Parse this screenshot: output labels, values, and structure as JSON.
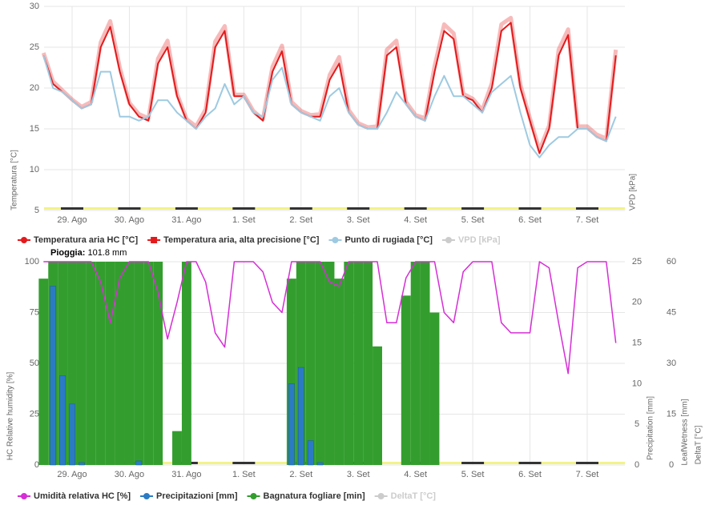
{
  "chart_data": [
    {
      "type": "line",
      "ylabel": "Temperatura [°C]",
      "y2label": "VPD [kPa]",
      "categories": [
        null,
        null,
        null,
        "29. Ago",
        null,
        null,
        null,
        null,
        null,
        "30. Ago",
        null,
        null,
        null,
        null,
        null,
        "31. Ago",
        null,
        null,
        null,
        null,
        null,
        "1. Set",
        null,
        null,
        null,
        null,
        null,
        "2. Set",
        null,
        null,
        null,
        null,
        null,
        "3. Set",
        null,
        null,
        null,
        null,
        null,
        "4. Set",
        null,
        null,
        null,
        null,
        null,
        "5. Set",
        null,
        null,
        null,
        null,
        null,
        "6. Set",
        null,
        null,
        null,
        null,
        null,
        "7. Set",
        null,
        null,
        null
      ],
      "ylim": [
        5,
        30
      ],
      "yticks": [
        5,
        10,
        15,
        20,
        25,
        30
      ],
      "grid": true,
      "series": [
        {
          "name": "Temperatura aria HC [°C]",
          "color": "#e31a1c",
          "marker": "circle",
          "values": [
            24,
            20.5,
            19.5,
            18.5,
            17.5,
            18,
            25,
            27.5,
            22,
            18,
            16.5,
            16,
            23,
            25,
            19,
            16,
            15,
            17,
            25,
            27,
            19,
            19,
            17,
            16,
            22,
            24.5,
            18,
            17,
            16.5,
            16.5,
            21,
            23,
            17,
            15.5,
            15,
            15,
            24,
            25,
            18,
            16.5,
            16,
            22,
            27,
            26,
            19,
            18.5,
            17,
            20,
            27,
            28,
            20,
            16,
            12,
            15,
            24,
            26.5,
            15,
            15,
            14,
            13.5,
            24
          ]
        },
        {
          "name": "Temperatura aria, alta precisione [°C]",
          "color": "#e31a1c",
          "marker": "square",
          "values": [
            24.3,
            20.8,
            19.7,
            18.6,
            17.7,
            18.3,
            25.6,
            28.2,
            22.5,
            18.2,
            16.8,
            16.3,
            23.6,
            25.8,
            19.3,
            16.2,
            15.3,
            17.4,
            25.7,
            27.6,
            19.2,
            19.2,
            17.2,
            16.2,
            22.6,
            25.2,
            18.3,
            17.2,
            16.7,
            16.8,
            21.6,
            23.8,
            17.3,
            15.7,
            15.2,
            15.3,
            24.7,
            25.8,
            18.3,
            16.7,
            16.3,
            22.7,
            27.8,
            26.7,
            19.3,
            18.7,
            17.3,
            20.6,
            27.8,
            28.6,
            20.4,
            16.3,
            12.4,
            15.4,
            24.7,
            27.2,
            15.3,
            15.3,
            14.3,
            13.8,
            24.7
          ]
        },
        {
          "name": "Punto di rugiada [°C]",
          "color": "#9ecae1",
          "marker": "circle",
          "values": [
            24,
            20,
            19.5,
            18.5,
            17.5,
            18,
            22,
            22,
            16.5,
            16.5,
            16,
            16.5,
            18.5,
            18.5,
            17,
            16,
            15,
            16.5,
            17.5,
            20.5,
            18,
            19,
            17,
            16.5,
            21,
            22.5,
            18,
            17,
            16.5,
            16,
            19,
            20,
            17,
            15.5,
            15,
            15,
            17,
            19.5,
            18,
            16.5,
            16,
            19,
            21.5,
            19,
            19,
            18,
            17,
            19.5,
            20.5,
            21.5,
            17,
            13,
            11.5,
            13,
            14,
            14,
            15,
            15,
            14,
            13.5,
            16.5
          ]
        },
        {
          "name": "VPD [kPa]",
          "color": "#cccccc",
          "marker": "circle",
          "visible": false
        }
      ]
    },
    {
      "type": "combo",
      "title": "Pioggia:",
      "subtitle": "101.8 mm",
      "ylabel": "HC Relative humidity [%]",
      "y2label": "Precipitation [mm]",
      "y3label": "LeafWetness [mm]",
      "y4label": "DeltaT [°C]",
      "categories": [
        null,
        null,
        null,
        "29. Ago",
        null,
        null,
        null,
        null,
        null,
        "30. Ago",
        null,
        null,
        null,
        null,
        null,
        "31. Ago",
        null,
        null,
        null,
        null,
        null,
        "1. Set",
        null,
        null,
        null,
        null,
        null,
        "2. Set",
        null,
        null,
        null,
        null,
        null,
        "3. Set",
        null,
        null,
        null,
        null,
        null,
        "4. Set",
        null,
        null,
        null,
        null,
        null,
        "5. Set",
        null,
        null,
        null,
        null,
        null,
        "6. Set",
        null,
        null,
        null,
        null,
        null,
        "7. Set",
        null,
        null,
        null
      ],
      "ylim": [
        0,
        100
      ],
      "yticks": [
        0,
        25,
        50,
        75,
        100
      ],
      "y2lim": [
        0,
        25
      ],
      "y2ticks": [
        0,
        5,
        10,
        15,
        20,
        25
      ],
      "y3lim": [
        0,
        60
      ],
      "y3ticks": [
        0,
        15,
        30,
        45,
        60
      ],
      "grid": true,
      "series": [
        {
          "name": "Umidità relativa HC [%]",
          "color": "#d62ed6",
          "type": "line",
          "axis": "y",
          "values": [
            100,
            100,
            100,
            100,
            100,
            100,
            90,
            70,
            92,
            100,
            100,
            100,
            85,
            62,
            80,
            100,
            100,
            90,
            65,
            58,
            100,
            100,
            100,
            95,
            80,
            75,
            100,
            100,
            100,
            100,
            90,
            88,
            100,
            100,
            100,
            100,
            70,
            70,
            92,
            100,
            100,
            100,
            75,
            70,
            95,
            100,
            100,
            100,
            70,
            65,
            65,
            65,
            100,
            97,
            70,
            45,
            97,
            100,
            100,
            100,
            60
          ]
        },
        {
          "name": "Precipitazioni [mm]",
          "color": "#2b7bc4",
          "type": "column",
          "axis": "y2",
          "values": [
            0,
            22,
            11,
            7.5,
            0.3,
            0,
            0,
            0,
            0,
            0,
            0.5,
            0,
            0,
            0,
            0,
            0,
            0,
            0,
            0,
            0,
            0,
            0,
            0,
            0,
            0,
            0,
            10,
            12,
            3,
            0.3,
            0,
            0,
            0,
            0,
            0,
            0,
            0,
            0,
            0,
            0,
            0,
            0,
            0,
            0,
            0,
            0,
            0,
            0,
            0,
            0,
            0,
            0,
            0,
            0,
            0,
            0,
            0,
            0,
            0,
            0,
            0
          ]
        },
        {
          "name": "Bagnatura fogliare [min]",
          "color": "#339e2e",
          "type": "column",
          "axis": "y3",
          "values": [
            55,
            60,
            60,
            60,
            60,
            60,
            60,
            60,
            60,
            60,
            60,
            60,
            60,
            0,
            10,
            60,
            0,
            0,
            0,
            0,
            0,
            0,
            0,
            0,
            0,
            0,
            55,
            60,
            60,
            60,
            60,
            55,
            60,
            60,
            60,
            35,
            0,
            0,
            50,
            60,
            60,
            45,
            0,
            0,
            0,
            0,
            0,
            0,
            0,
            0,
            0,
            0,
            0,
            0,
            0,
            0,
            0,
            0,
            0,
            0,
            0
          ]
        },
        {
          "name": "DeltaT [°C]",
          "color": "#cccccc",
          "type": "line",
          "axis": "y4",
          "visible": false
        }
      ]
    }
  ]
}
